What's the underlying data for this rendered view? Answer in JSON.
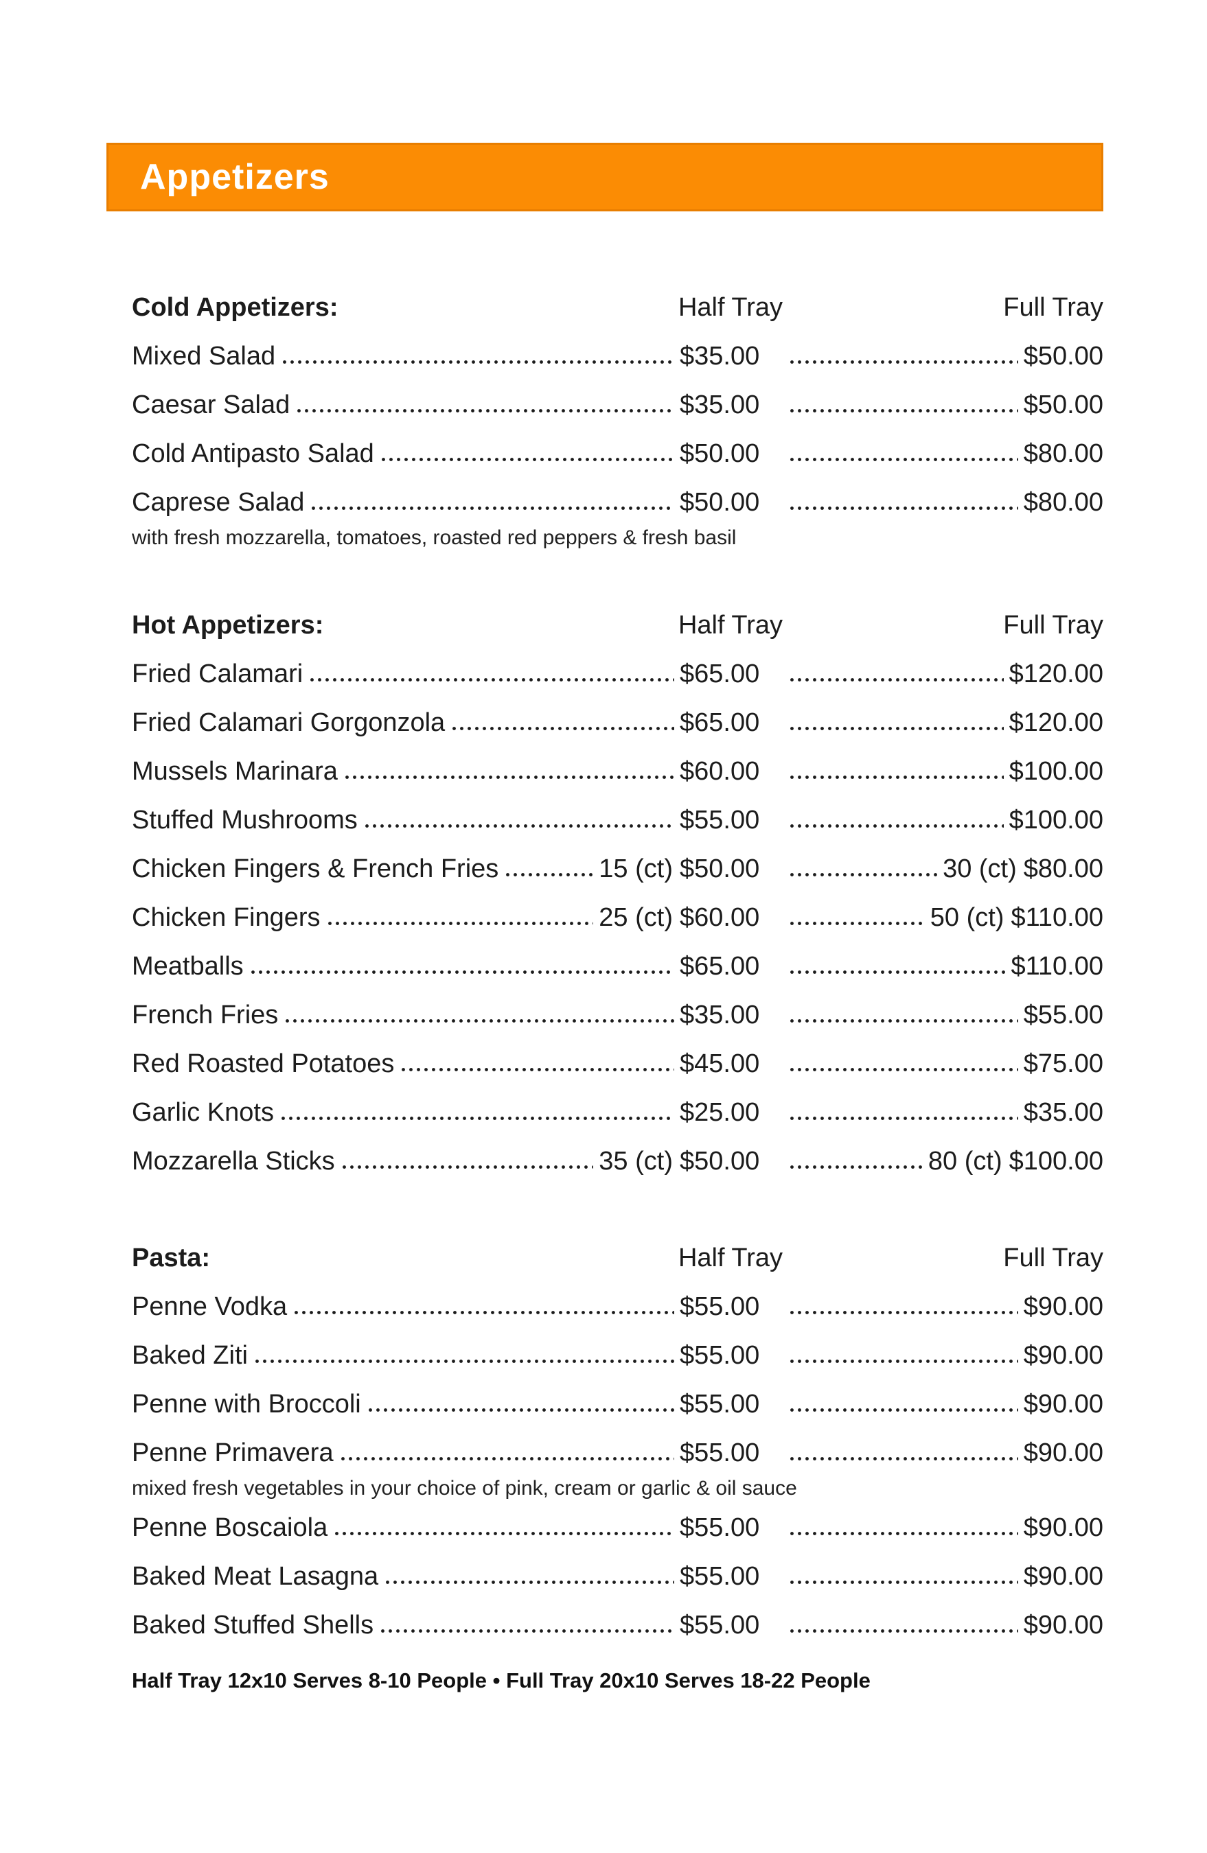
{
  "banner": {
    "title": "Appetizers",
    "bg_color": "#fb8c04",
    "border_color": "#e87e00",
    "text_color": "#ffffff"
  },
  "columns": {
    "half": "Half Tray",
    "full": "Full Tray"
  },
  "sections": [
    {
      "title": "Cold Appetizers:",
      "items": [
        {
          "name": "Mixed Salad",
          "half": "$35.00",
          "full": "$50.00"
        },
        {
          "name": "Caesar Salad",
          "half": "$35.00",
          "full": "$50.00"
        },
        {
          "name": "Cold Antipasto Salad",
          "half": "$50.00",
          "full": "$80.00"
        },
        {
          "name": "Caprese Salad",
          "half": "$50.00",
          "full": "$80.00",
          "note": "with fresh mozzarella, tomatoes, roasted red peppers & fresh basil"
        }
      ]
    },
    {
      "title": "Hot Appetizers:",
      "items": [
        {
          "name": "Fried Calamari",
          "half": "$65.00",
          "full": "$120.00"
        },
        {
          "name": "Fried Calamari Gorgonzola",
          "half": "$65.00",
          "full": "$120.00"
        },
        {
          "name": "Mussels Marinara",
          "half": "$60.00",
          "full": "$100.00"
        },
        {
          "name": "Stuffed Mushrooms",
          "half": "$55.00",
          "full": "$100.00"
        },
        {
          "name": "Chicken Fingers & French Fries",
          "half_count": "15 (ct)",
          "half": "$50.00",
          "full_count": "30 (ct)",
          "full": "$80.00"
        },
        {
          "name": "Chicken Fingers",
          "half_count": "25 (ct)",
          "half": "$60.00",
          "full_count": "50 (ct)",
          "full": "$110.00"
        },
        {
          "name": "Meatballs",
          "half": "$65.00",
          "full": "$110.00"
        },
        {
          "name": "French Fries",
          "half": "$35.00",
          "full": "$55.00"
        },
        {
          "name": "Red Roasted Potatoes",
          "half": "$45.00",
          "full": "$75.00"
        },
        {
          "name": "Garlic Knots",
          "half": "$25.00",
          "full": "$35.00"
        },
        {
          "name": "Mozzarella Sticks",
          "half_count": "35 (ct)",
          "half": "$50.00",
          "full_count": "80 (ct)",
          "full": "$100.00"
        }
      ]
    },
    {
      "title": "Pasta:",
      "items": [
        {
          "name": "Penne Vodka",
          "half": "$55.00",
          "full": "$90.00"
        },
        {
          "name": "Baked Ziti",
          "half": "$55.00",
          "full": "$90.00"
        },
        {
          "name": "Penne with Broccoli",
          "half": "$55.00",
          "full": "$90.00"
        },
        {
          "name": "Penne Primavera",
          "half": "$55.00",
          "full": "$90.00",
          "note": "mixed fresh vegetables in your choice of pink, cream or garlic & oil sauce"
        },
        {
          "name": "Penne Boscaiola",
          "half": "$55.00",
          "full": "$90.00"
        },
        {
          "name": "Baked Meat Lasagna",
          "half": "$55.00",
          "full": "$90.00"
        },
        {
          "name": "Baked Stuffed Shells",
          "half": "$55.00",
          "full": "$90.00"
        }
      ]
    }
  ],
  "footer": "Half Tray 12x10 Serves 8-10 People • Full Tray 20x10 Serves 18-22 People"
}
